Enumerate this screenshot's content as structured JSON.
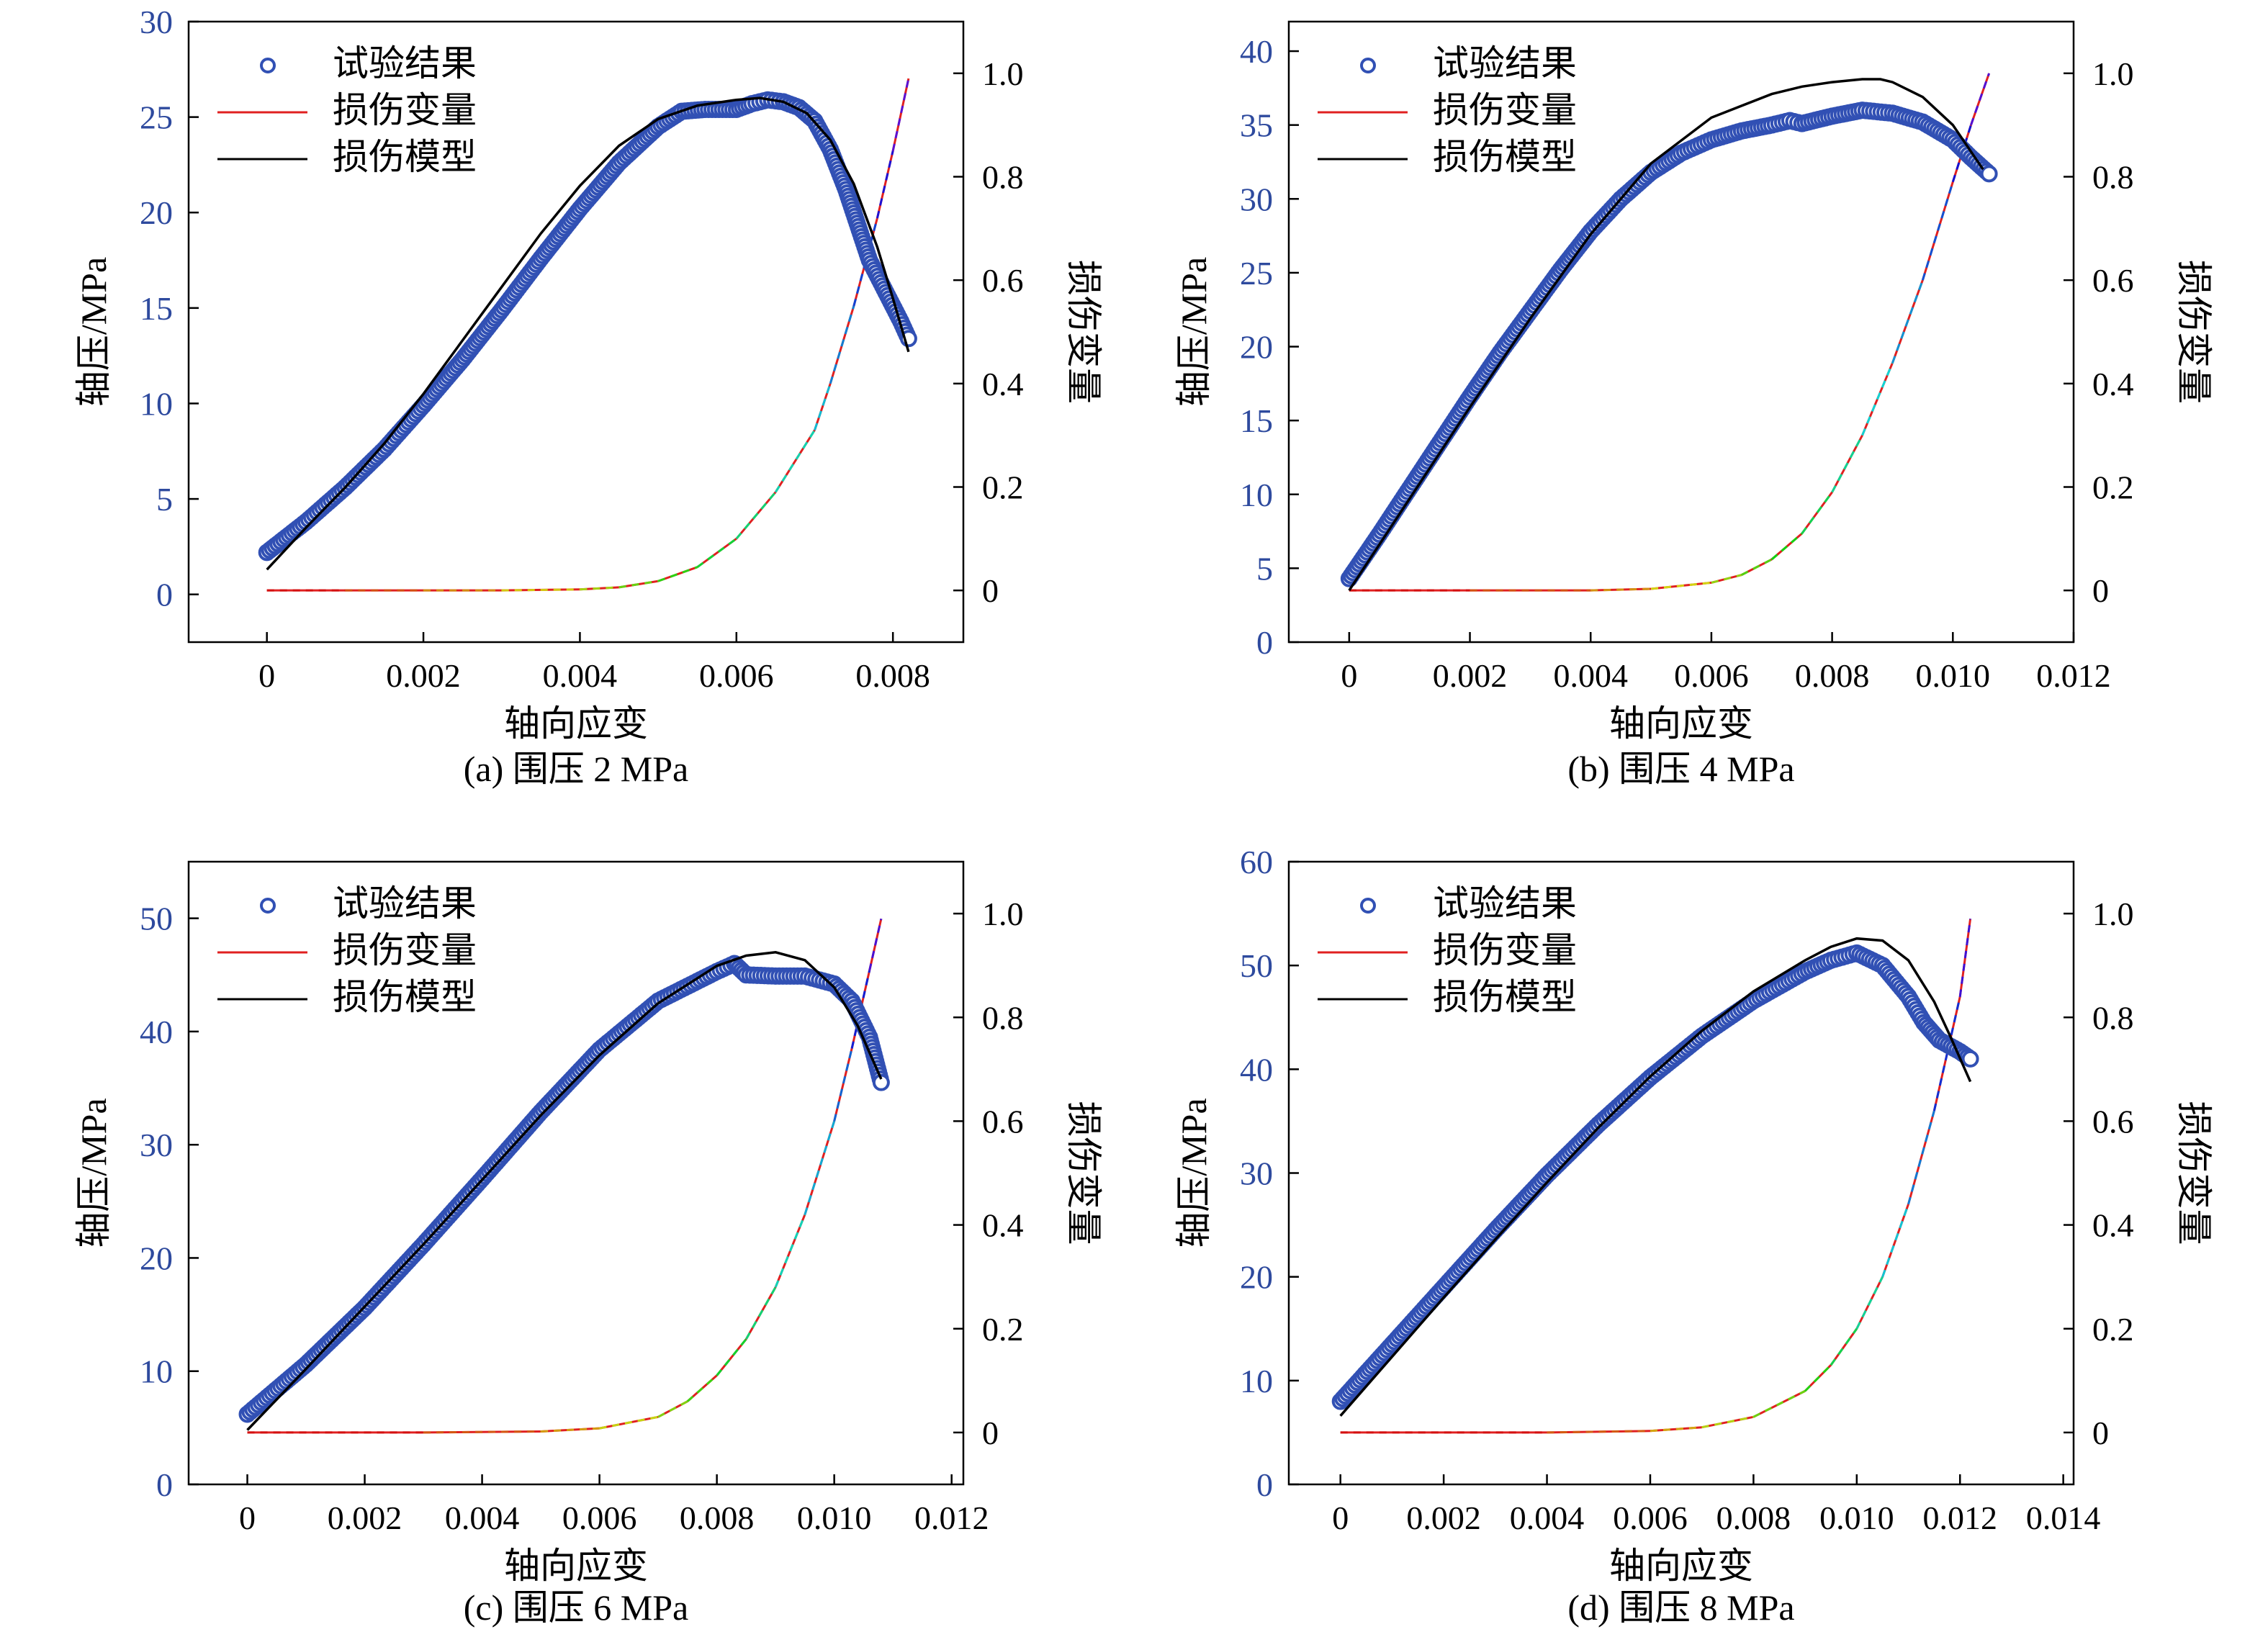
{
  "colors": {
    "experiment": "#3150b4",
    "damage_variable": "#e02020",
    "damage_model": "#000000",
    "left_tick": "#2e4a9e"
  },
  "legend": {
    "experiment": "试验结果",
    "damage_variable": "损伤变量",
    "damage_model": "损伤模型"
  },
  "axis_titles": {
    "x": "轴向应变",
    "y_left": "轴压/MPa",
    "y_right": "损伤变量"
  },
  "chart_data": [
    {
      "type": "scatter",
      "caption": "(a) 围压 2 MPa",
      "xlim": [
        -0.001,
        0.0089
      ],
      "xticks": [
        0,
        0.002,
        0.004,
        0.006,
        0.008
      ],
      "xtick_labels": [
        "0",
        "0.002",
        "0.004",
        "0.006",
        "0.008"
      ],
      "ylim_left": [
        -2.5,
        30
      ],
      "yticks_left": [
        0,
        5,
        10,
        15,
        20,
        25,
        30
      ],
      "ylim_right": [
        -0.1,
        1.1
      ],
      "yticks_right": [
        0,
        0.2,
        0.4,
        0.6,
        0.8,
        1.0
      ],
      "ytick_labels_right": [
        "0",
        "0.2",
        "0.4",
        "0.6",
        "0.8",
        "1.0"
      ],
      "series": [
        {
          "name": "试验结果",
          "axis": "left",
          "style": "markers",
          "x": [
            0,
            0.0005,
            0.001,
            0.0015,
            0.002,
            0.0025,
            0.003,
            0.0035,
            0.004,
            0.0045,
            0.005,
            0.0053,
            0.0056,
            0.006,
            0.0062,
            0.0064,
            0.0066,
            0.0068,
            0.007,
            0.0072,
            0.0074,
            0.0077,
            0.0081,
            0.0082
          ],
          "y": [
            2.2,
            3.8,
            5.6,
            7.6,
            9.9,
            12.3,
            14.9,
            17.6,
            20.2,
            22.6,
            24.5,
            25.3,
            25.4,
            25.4,
            25.7,
            25.9,
            25.8,
            25.5,
            24.8,
            23.3,
            21.2,
            17.5,
            14.3,
            13.4
          ]
        },
        {
          "name": "损伤变量",
          "axis": "right",
          "style": "line",
          "x": [
            0,
            0.001,
            0.002,
            0.003,
            0.004,
            0.0045,
            0.005,
            0.0055,
            0.006,
            0.0065,
            0.007,
            0.0072,
            0.0075,
            0.0078,
            0.008,
            0.0082
          ],
          "y": [
            0,
            0,
            0,
            0,
            0.002,
            0.006,
            0.018,
            0.045,
            0.1,
            0.19,
            0.31,
            0.4,
            0.55,
            0.72,
            0.85,
            0.99
          ]
        },
        {
          "name": "损伤模型",
          "axis": "left",
          "style": "line",
          "x": [
            0,
            0.0005,
            0.001,
            0.0015,
            0.002,
            0.0025,
            0.003,
            0.0035,
            0.004,
            0.0045,
            0.005,
            0.0055,
            0.006,
            0.0063,
            0.0066,
            0.0069,
            0.0072,
            0.0075,
            0.0078,
            0.008,
            0.0082
          ],
          "y": [
            1.3,
            3.5,
            5.6,
            7.9,
            10.5,
            13.3,
            16.1,
            18.9,
            21.4,
            23.5,
            24.9,
            25.6,
            25.9,
            26,
            25.8,
            25.2,
            23.8,
            21.5,
            18.2,
            15.5,
            12.7
          ]
        }
      ]
    },
    {
      "type": "scatter",
      "caption": "(b) 围压 4 MPa",
      "xlim": [
        -0.001,
        0.012
      ],
      "xticks": [
        0,
        0.002,
        0.004,
        0.006,
        0.008,
        0.01,
        0.012
      ],
      "xtick_labels": [
        "0",
        "0.002",
        "0.004",
        "0.006",
        "0.008",
        "0.010",
        "0.012"
      ],
      "ylim_left": [
        0,
        42
      ],
      "yticks_left": [
        0,
        5,
        10,
        15,
        20,
        25,
        30,
        35,
        40
      ],
      "ylim_right": [
        -0.1,
        1.1
      ],
      "yticks_right": [
        0,
        0.2,
        0.4,
        0.6,
        0.8,
        1.0
      ],
      "ytick_labels_right": [
        "0",
        "0.2",
        "0.4",
        "0.6",
        "0.8",
        "1.0"
      ],
      "series": [
        {
          "name": "试验结果",
          "axis": "left",
          "style": "markers",
          "x": [
            0,
            0.0005,
            0.001,
            0.0015,
            0.002,
            0.0025,
            0.003,
            0.0035,
            0.004,
            0.0045,
            0.005,
            0.0055,
            0.006,
            0.0065,
            0.007,
            0.0073,
            0.0075,
            0.008,
            0.0085,
            0.009,
            0.0095,
            0.01,
            0.0103,
            0.0106
          ],
          "y": [
            4.3,
            7.3,
            10.4,
            13.5,
            16.6,
            19.6,
            22.4,
            25.2,
            27.8,
            30.0,
            31.8,
            33.1,
            34.0,
            34.6,
            35.0,
            35.3,
            35.1,
            35.6,
            36.0,
            35.8,
            35.2,
            34.0,
            32.8,
            31.7
          ]
        },
        {
          "name": "损伤变量",
          "axis": "right",
          "style": "line",
          "x": [
            0,
            0.002,
            0.004,
            0.005,
            0.006,
            0.0065,
            0.007,
            0.0075,
            0.008,
            0.0085,
            0.009,
            0.0095,
            0.01,
            0.0103,
            0.0106
          ],
          "y": [
            0,
            0,
            0,
            0.003,
            0.015,
            0.03,
            0.06,
            0.11,
            0.19,
            0.3,
            0.44,
            0.6,
            0.79,
            0.9,
            1.0
          ]
        },
        {
          "name": "损伤模型",
          "axis": "left",
          "style": "line",
          "x": [
            0,
            0.001,
            0.002,
            0.003,
            0.004,
            0.005,
            0.006,
            0.007,
            0.0075,
            0.008,
            0.0085,
            0.0088,
            0.009,
            0.0095,
            0.01,
            0.0105
          ],
          "y": [
            3.5,
            9.7,
            15.9,
            21.9,
            27.6,
            32.4,
            35.5,
            37.1,
            37.6,
            37.9,
            38.1,
            38.1,
            37.9,
            36.9,
            35.0,
            32.0
          ]
        }
      ]
    },
    {
      "type": "scatter",
      "caption": "(c) 围压 6 MPa",
      "xlim": [
        -0.001,
        0.0122
      ],
      "xticks": [
        0,
        0.002,
        0.004,
        0.006,
        0.008,
        0.01,
        0.012
      ],
      "xtick_labels": [
        "0",
        "0.002",
        "0.004",
        "0.006",
        "0.008",
        "0.010",
        "0.012"
      ],
      "ylim_left": [
        0,
        55
      ],
      "yticks_left": [
        0,
        10,
        20,
        30,
        40,
        50
      ],
      "ylim_right": [
        -0.1,
        1.1
      ],
      "yticks_right": [
        0,
        0.2,
        0.4,
        0.6,
        0.8,
        1.0
      ],
      "ytick_labels_right": [
        "0",
        "0.2",
        "0.4",
        "0.6",
        "0.8",
        "1.0"
      ],
      "series": [
        {
          "name": "试验结果",
          "axis": "left",
          "style": "markers",
          "x": [
            0,
            0.001,
            0.002,
            0.003,
            0.004,
            0.005,
            0.006,
            0.007,
            0.008,
            0.0083,
            0.0085,
            0.009,
            0.0095,
            0.01,
            0.0103,
            0.0106,
            0.0108
          ],
          "y": [
            6.2,
            10.6,
            15.6,
            21.2,
            27.0,
            32.9,
            38.4,
            42.7,
            45.3,
            46.0,
            45.0,
            44.9,
            44.9,
            44.2,
            42.7,
            39.5,
            35.5
          ]
        },
        {
          "name": "损伤变量",
          "axis": "right",
          "style": "line",
          "x": [
            0,
            0.003,
            0.005,
            0.006,
            0.007,
            0.0075,
            0.008,
            0.0085,
            0.009,
            0.0095,
            0.01,
            0.0103,
            0.0106,
            0.0108
          ],
          "y": [
            0,
            0,
            0.002,
            0.008,
            0.03,
            0.06,
            0.11,
            0.18,
            0.28,
            0.42,
            0.6,
            0.74,
            0.89,
            0.99
          ]
        },
        {
          "name": "损伤模型",
          "axis": "left",
          "style": "line",
          "x": [
            0,
            0.001,
            0.002,
            0.003,
            0.004,
            0.005,
            0.006,
            0.007,
            0.008,
            0.0085,
            0.009,
            0.0095,
            0.01,
            0.0104,
            0.0108
          ],
          "y": [
            4.8,
            10.2,
            15.7,
            21.2,
            26.9,
            32.6,
            37.9,
            42.5,
            45.8,
            46.7,
            47.0,
            46.3,
            43.9,
            40.5,
            35.8
          ]
        }
      ]
    },
    {
      "type": "scatter",
      "caption": "(d) 围压 8 MPa",
      "xlim": [
        -0.001,
        0.0142
      ],
      "xticks": [
        0,
        0.002,
        0.004,
        0.006,
        0.008,
        0.01,
        0.012,
        0.014
      ],
      "xtick_labels": [
        "0",
        "0.002",
        "0.004",
        "0.006",
        "0.008",
        "0.010",
        "0.012",
        "0.014"
      ],
      "ylim_left": [
        0,
        60
      ],
      "yticks_left": [
        0,
        10,
        20,
        30,
        40,
        50,
        60
      ],
      "ylim_right": [
        -0.1,
        1.1
      ],
      "yticks_right": [
        0,
        0.2,
        0.4,
        0.6,
        0.8,
        1.0
      ],
      "ytick_labels_right": [
        "0",
        "0.2",
        "0.4",
        "0.6",
        "0.8",
        "1.0"
      ],
      "series": [
        {
          "name": "试验结果",
          "axis": "left",
          "style": "markers",
          "x": [
            0,
            0.001,
            0.002,
            0.003,
            0.004,
            0.005,
            0.006,
            0.007,
            0.008,
            0.009,
            0.0095,
            0.01,
            0.0105,
            0.011,
            0.0113,
            0.0116,
            0.012,
            0.0122
          ],
          "y": [
            8.0,
            13.5,
            19.0,
            24.5,
            29.8,
            34.7,
            39.2,
            43.2,
            46.6,
            49.4,
            50.5,
            51.2,
            50.0,
            47.0,
            44.5,
            42.8,
            41.7,
            41.0
          ]
        },
        {
          "name": "损伤变量",
          "axis": "right",
          "style": "line",
          "x": [
            0,
            0.004,
            0.006,
            0.007,
            0.008,
            0.009,
            0.0095,
            0.01,
            0.0105,
            0.011,
            0.0115,
            0.012,
            0.0122
          ],
          "y": [
            0,
            0,
            0.003,
            0.01,
            0.03,
            0.08,
            0.13,
            0.2,
            0.3,
            0.44,
            0.62,
            0.84,
            0.99
          ]
        },
        {
          "name": "损伤模型",
          "axis": "left",
          "style": "line",
          "x": [
            0,
            0.001,
            0.002,
            0.003,
            0.004,
            0.005,
            0.006,
            0.007,
            0.008,
            0.009,
            0.0095,
            0.01,
            0.0105,
            0.011,
            0.0115,
            0.0118,
            0.0122
          ],
          "y": [
            6.6,
            12.3,
            18.0,
            23.6,
            29.1,
            34.4,
            39.3,
            43.7,
            47.5,
            50.5,
            51.8,
            52.6,
            52.4,
            50.5,
            46.5,
            43.3,
            38.8
          ]
        }
      ]
    }
  ]
}
